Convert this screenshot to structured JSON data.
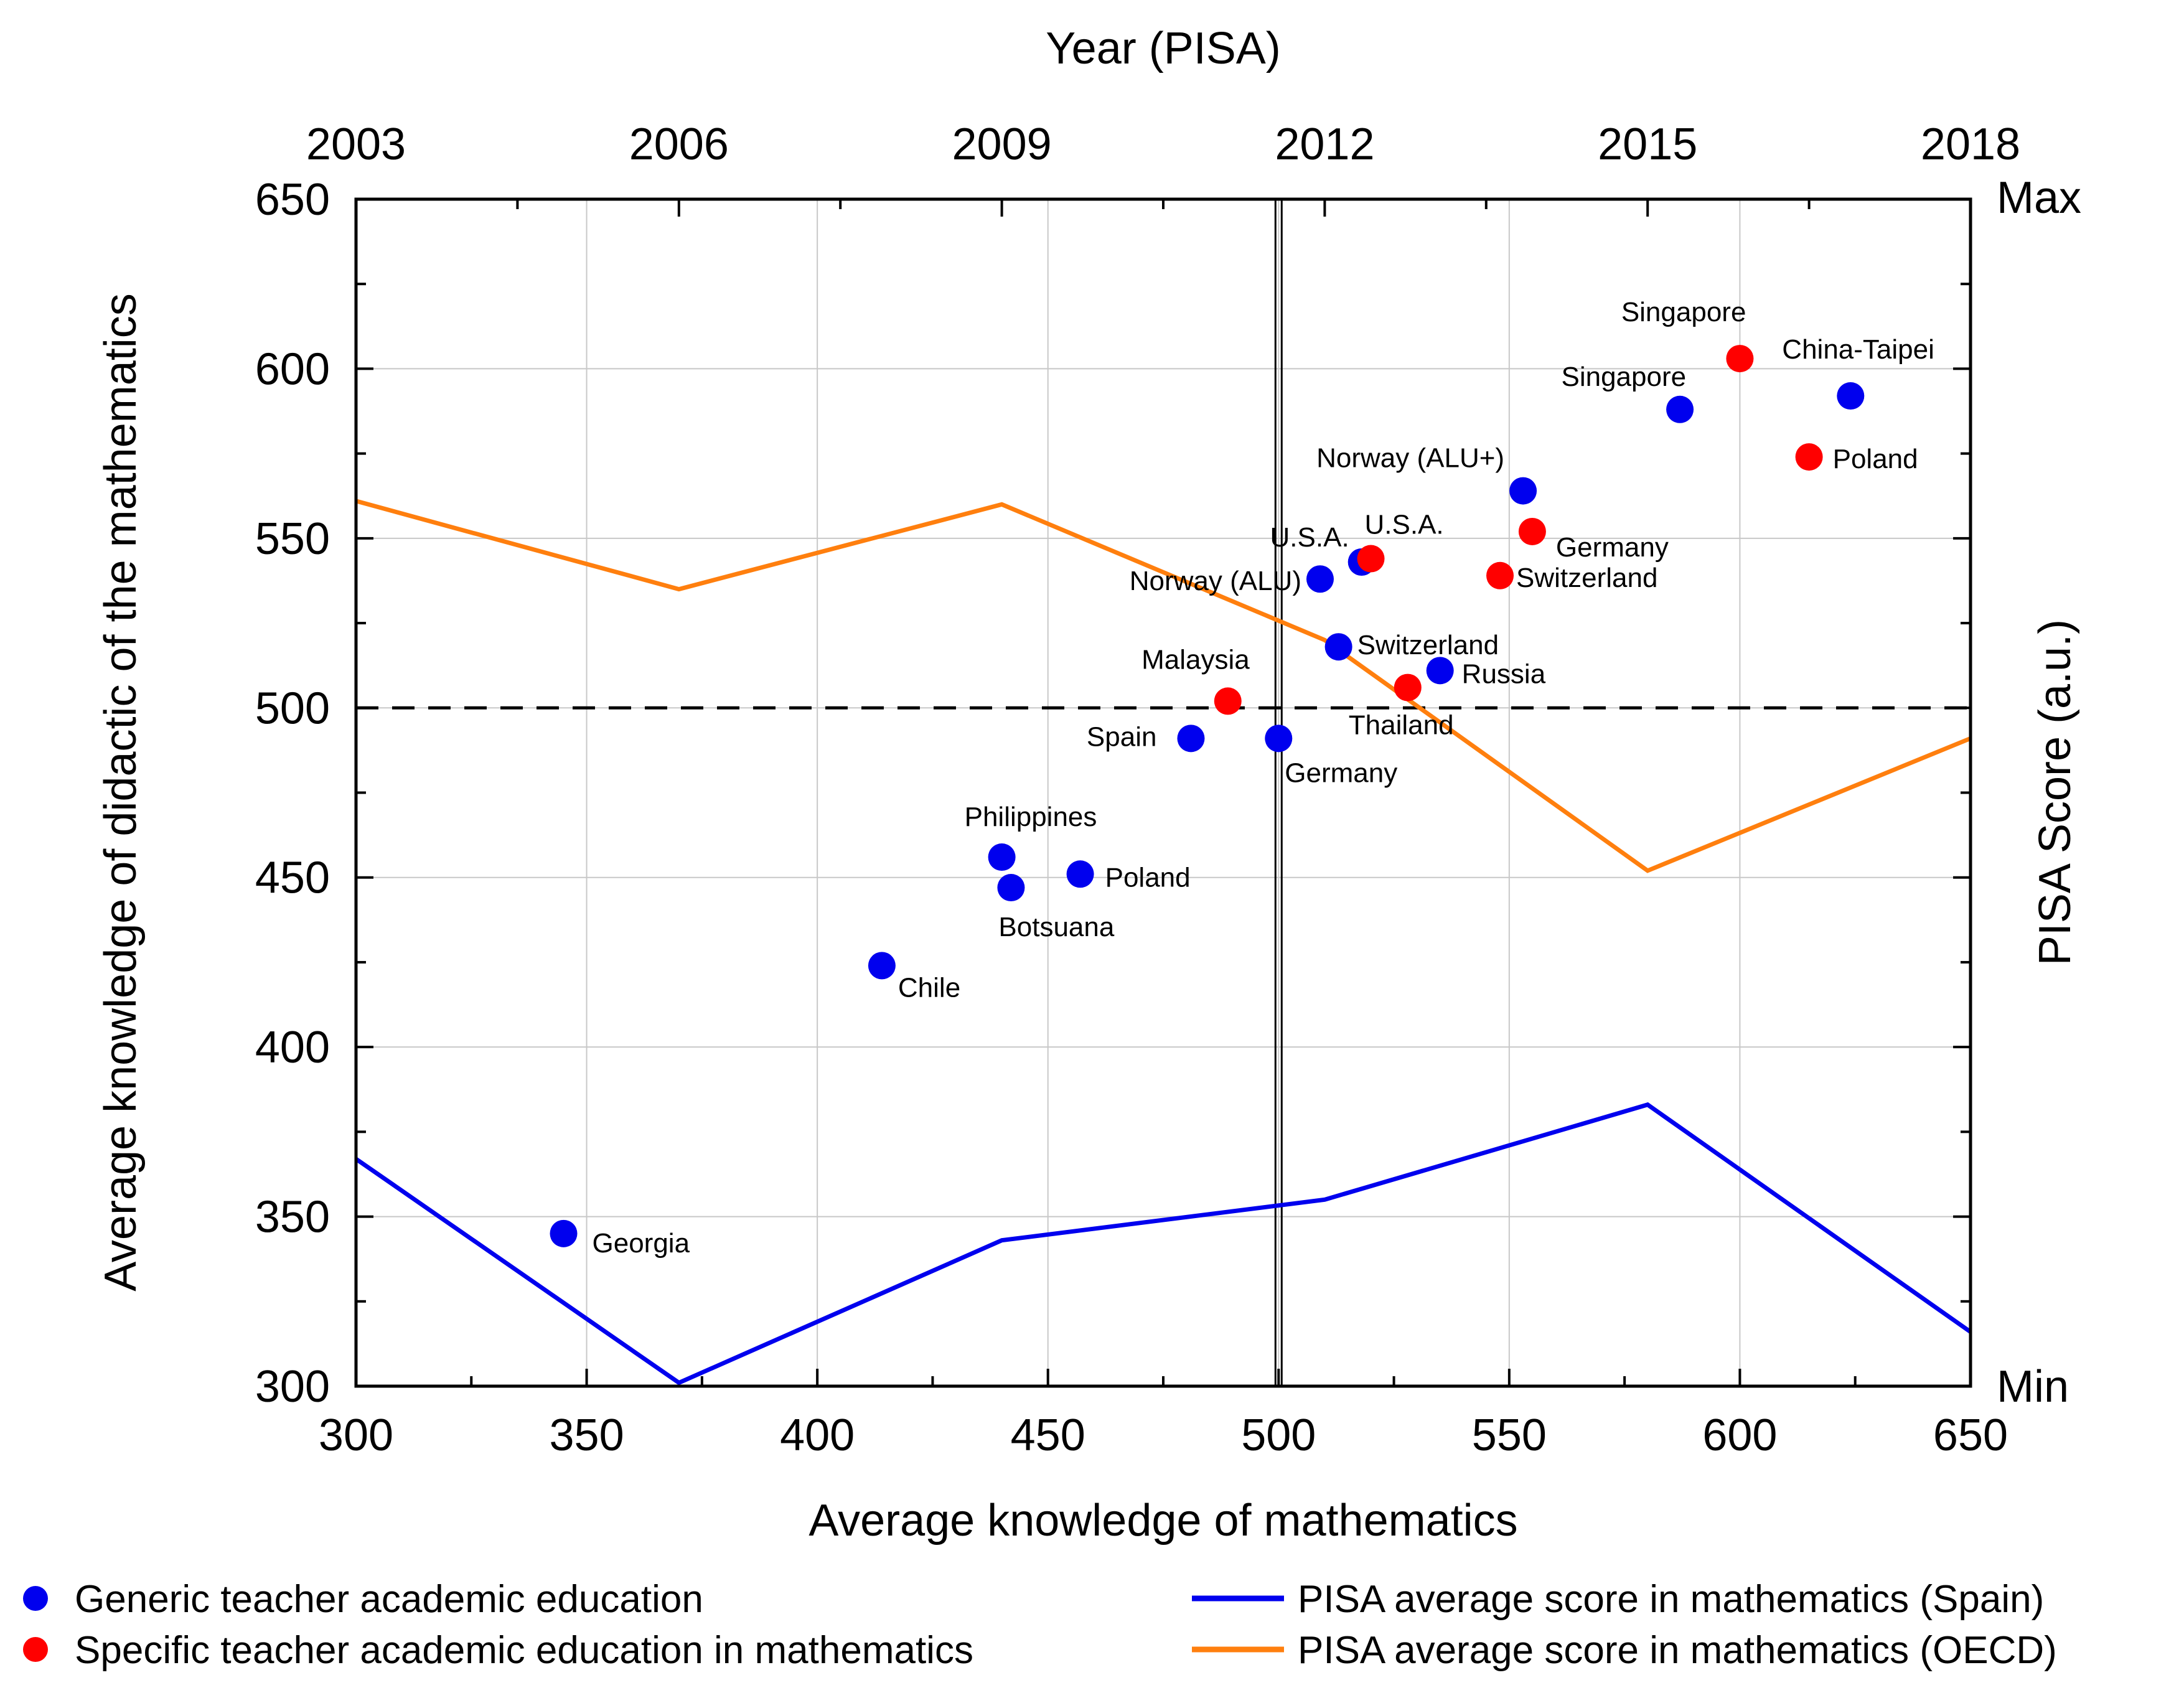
{
  "chart_data": {
    "type": "scatter",
    "xlabel": "Average knowledge of mathematics",
    "ylabel": "Average knowledge of didactic of the mathematics",
    "x2label": "Year (PISA)",
    "y2label": "PISA Score (a.u.)",
    "xlim": [
      300,
      650
    ],
    "ylim": [
      300,
      650
    ],
    "x_ticks": [
      "300",
      "350",
      "400",
      "450",
      "500",
      "550",
      "600",
      "650"
    ],
    "y_ticks": [
      "300",
      "350",
      "400",
      "450",
      "500",
      "550",
      "600",
      "650"
    ],
    "x2_ticks": [
      "2003",
      "2006",
      "2009",
      "2012",
      "2015",
      "2018"
    ],
    "y2_labels": {
      "max": "Max",
      "min": "Min"
    },
    "grid": true,
    "reference_lines": {
      "vertical_x": 500,
      "horizontal_dashed_y": 500
    },
    "series": [
      {
        "name": "Generic teacher academic education",
        "kind": "scatter",
        "color": "#0000ee",
        "points": [
          {
            "label": "Georgia",
            "x": 345,
            "y": 345
          },
          {
            "label": "Chile",
            "x": 414,
            "y": 424
          },
          {
            "label": "Philippines",
            "x": 440,
            "y": 456
          },
          {
            "label": "Botsuana",
            "x": 442,
            "y": 447
          },
          {
            "label": "Poland",
            "x": 457,
            "y": 451
          },
          {
            "label": "Spain",
            "x": 481,
            "y": 491
          },
          {
            "label": "Germany",
            "x": 500,
            "y": 491
          },
          {
            "label": "Norway (ALU)",
            "x": 509,
            "y": 538
          },
          {
            "label": "U.S.A.",
            "x": 518,
            "y": 543
          },
          {
            "label": "Switzerland",
            "x": 513,
            "y": 518
          },
          {
            "label": "Russia",
            "x": 535,
            "y": 511
          },
          {
            "label": "Norway (ALU+)",
            "x": 553,
            "y": 564
          },
          {
            "label": "Singapore",
            "x": 587,
            "y": 588
          },
          {
            "label": "China-Taipei",
            "x": 624,
            "y": 592
          }
        ]
      },
      {
        "name": "Specific teacher academic education in mathematics",
        "kind": "scatter",
        "color": "#ff0000",
        "points": [
          {
            "label": "Malaysia",
            "x": 489,
            "y": 502
          },
          {
            "label": "U.S.A.",
            "x": 520,
            "y": 544
          },
          {
            "label": "Thailand",
            "x": 528,
            "y": 506
          },
          {
            "label": "Switzerland",
            "x": 548,
            "y": 539
          },
          {
            "label": "Germany",
            "x": 555,
            "y": 552
          },
          {
            "label": "Singapore",
            "x": 600,
            "y": 603
          },
          {
            "label": "Poland",
            "x": 615,
            "y": 574
          }
        ]
      },
      {
        "name": "PISA average score in mathematics (Spain)",
        "kind": "line",
        "color": "#0000ee",
        "points": [
          {
            "x": 300,
            "y": 367
          },
          {
            "x": 370,
            "y": 301
          },
          {
            "x": 440,
            "y": 343
          },
          {
            "x": 510,
            "y": 355
          },
          {
            "x": 580,
            "y": 383
          },
          {
            "x": 650,
            "y": 316
          }
        ]
      },
      {
        "name": "PISA average score in mathematics (OECD)",
        "kind": "line",
        "color": "#ff7f0e",
        "points": [
          {
            "x": 300,
            "y": 561
          },
          {
            "x": 370,
            "y": 535
          },
          {
            "x": 440,
            "y": 560
          },
          {
            "x": 510,
            "y": 520
          },
          {
            "x": 580,
            "y": 452
          },
          {
            "x": 650,
            "y": 491
          }
        ]
      }
    ],
    "legend": [
      {
        "text": "Generic teacher academic education",
        "marker": "dot",
        "color": "#0000ee"
      },
      {
        "text": "Specific teacher academic education in mathematics",
        "marker": "dot",
        "color": "#ff0000"
      },
      {
        "text": "PISA average score in mathematics (Spain)",
        "marker": "line",
        "color": "#0000ee"
      },
      {
        "text": "PISA average score in mathematics (OECD)",
        "marker": "line",
        "color": "#ff7f0e"
      }
    ]
  }
}
